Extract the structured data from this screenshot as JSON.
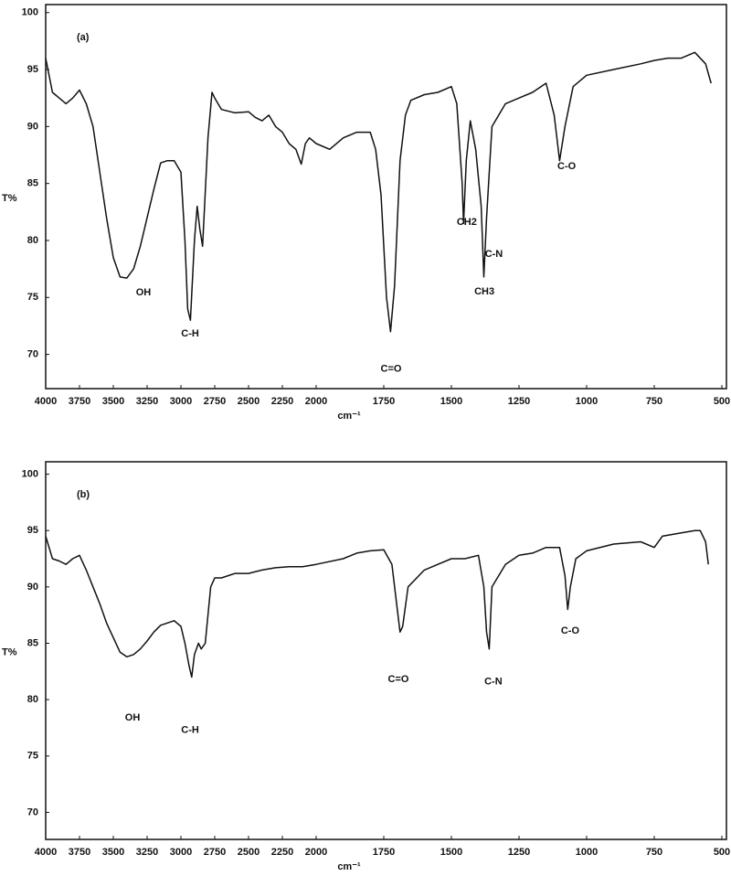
{
  "chart_data": [
    {
      "type": "line",
      "label": "(a)",
      "xlabel": "cm⁻¹",
      "ylabel": "T%",
      "color": "#111111",
      "xlim": [
        4000,
        500
      ],
      "xbreak": 2000,
      "xticks": [
        4000,
        3750,
        3500,
        3250,
        3000,
        2750,
        2500,
        2250,
        2000,
        1750,
        1500,
        1250,
        1000,
        750,
        500
      ],
      "ylim": [
        67,
        100.7
      ],
      "yticks": [
        70,
        75,
        80,
        85,
        90,
        95,
        100
      ],
      "x": [
        4000,
        3950,
        3900,
        3850,
        3800,
        3750,
        3700,
        3650,
        3600,
        3550,
        3500,
        3450,
        3400,
        3350,
        3300,
        3250,
        3200,
        3150,
        3100,
        3050,
        3000,
        2970,
        2950,
        2930,
        2900,
        2880,
        2860,
        2840,
        2800,
        2770,
        2750,
        2700,
        2600,
        2500,
        2450,
        2400,
        2350,
        2300,
        2250,
        2200,
        2150,
        2110,
        2080,
        2050,
        2000,
        1950,
        1900,
        1850,
        1800,
        1780,
        1760,
        1740,
        1725,
        1710,
        1690,
        1670,
        1650,
        1600,
        1550,
        1500,
        1480,
        1460,
        1455,
        1445,
        1430,
        1410,
        1390,
        1380,
        1370,
        1350,
        1300,
        1250,
        1200,
        1150,
        1120,
        1100,
        1080,
        1050,
        1000,
        900,
        800,
        750,
        700,
        650,
        600,
        560,
        540
      ],
      "y": [
        96,
        93,
        92.5,
        92,
        92.5,
        93.2,
        92,
        90,
        86,
        82,
        78.5,
        76.8,
        76.7,
        77.5,
        79.5,
        82,
        84.5,
        86.8,
        87,
        87,
        86,
        80,
        74,
        73,
        80,
        83,
        81,
        79.5,
        89,
        93,
        92.5,
        91.5,
        91.2,
        91.3,
        90.8,
        90.5,
        91,
        90,
        89.5,
        88.5,
        88,
        86.7,
        88.5,
        89,
        88.5,
        88,
        89,
        89.5,
        89.5,
        88,
        84,
        75,
        72,
        76,
        87,
        91,
        92.3,
        92.8,
        93,
        93.5,
        92,
        85,
        81.5,
        87,
        90.5,
        88,
        83,
        76.8,
        82,
        90,
        92,
        92.5,
        93,
        93.8,
        91,
        87,
        90,
        93.5,
        94.5,
        95,
        95.5,
        95.8,
        96,
        96,
        96.5,
        95.5,
        93.8
      ],
      "annotations": [
        {
          "text": "OH",
          "x": 3277,
          "y": 75.4
        },
        {
          "text": "C-H",
          "x": 2932,
          "y": 71.8
        },
        {
          "text": "C=O",
          "x": 1723,
          "y": 68.7
        },
        {
          "text": "CH2",
          "x": 1443,
          "y": 81.6
        },
        {
          "text": "C-N",
          "x": 1343,
          "y": 78.8
        },
        {
          "text": "CH3",
          "x": 1378,
          "y": 75.5
        },
        {
          "text": "C-O",
          "x": 1074,
          "y": 86.5
        }
      ]
    },
    {
      "type": "line",
      "label": "(b)",
      "xlabel": "cm⁻¹",
      "ylabel": "T%",
      "color": "#111111",
      "xlim": [
        4000,
        500
      ],
      "xbreak": 2000,
      "xticks": [
        4000,
        3750,
        3500,
        3250,
        3000,
        2750,
        2500,
        2250,
        2000,
        1750,
        1500,
        1250,
        1000,
        750,
        500
      ],
      "ylim": [
        67.6,
        101.1
      ],
      "yticks": [
        70,
        75,
        80,
        85,
        90,
        95,
        100
      ],
      "x": [
        4000,
        3950,
        3900,
        3850,
        3800,
        3750,
        3700,
        3650,
        3600,
        3550,
        3500,
        3450,
        3400,
        3350,
        3300,
        3250,
        3200,
        3150,
        3100,
        3050,
        3000,
        2970,
        2940,
        2920,
        2900,
        2870,
        2850,
        2820,
        2780,
        2750,
        2700,
        2600,
        2500,
        2400,
        2300,
        2200,
        2100,
        2000,
        1900,
        1850,
        1800,
        1750,
        1720,
        1700,
        1690,
        1680,
        1660,
        1600,
        1550,
        1500,
        1450,
        1400,
        1380,
        1370,
        1360,
        1350,
        1300,
        1250,
        1200,
        1150,
        1100,
        1080,
        1070,
        1060,
        1040,
        1000,
        900,
        800,
        750,
        720,
        650,
        600,
        580,
        560,
        550
      ],
      "y": [
        94.5,
        92.5,
        92.3,
        92,
        92.5,
        92.8,
        91.5,
        90,
        88.5,
        86.8,
        85.5,
        84.2,
        83.8,
        84,
        84.5,
        85.2,
        86,
        86.6,
        86.8,
        87,
        86.5,
        85,
        83,
        82,
        84,
        85,
        84.5,
        85,
        90,
        90.8,
        90.8,
        91.2,
        91.2,
        91.5,
        91.7,
        91.8,
        91.8,
        92,
        92.5,
        93,
        93.2,
        93.3,
        92,
        88,
        86,
        86.5,
        90,
        91.5,
        92,
        92.5,
        92.5,
        92.8,
        90,
        86,
        84.5,
        90,
        92,
        92.8,
        93,
        93.5,
        93.5,
        91,
        88,
        90,
        92.5,
        93.2,
        93.8,
        94,
        93.5,
        94.5,
        94.8,
        95,
        95,
        94,
        92
      ],
      "annotations": [
        {
          "text": "OH",
          "x": 3358,
          "y": 78.4
        },
        {
          "text": "C-H",
          "x": 2932,
          "y": 77.3
        },
        {
          "text": "C=O",
          "x": 1696,
          "y": 81.8
        },
        {
          "text": "C-N",
          "x": 1345,
          "y": 81.6
        },
        {
          "text": "C-O",
          "x": 1061,
          "y": 86.1
        }
      ]
    }
  ]
}
